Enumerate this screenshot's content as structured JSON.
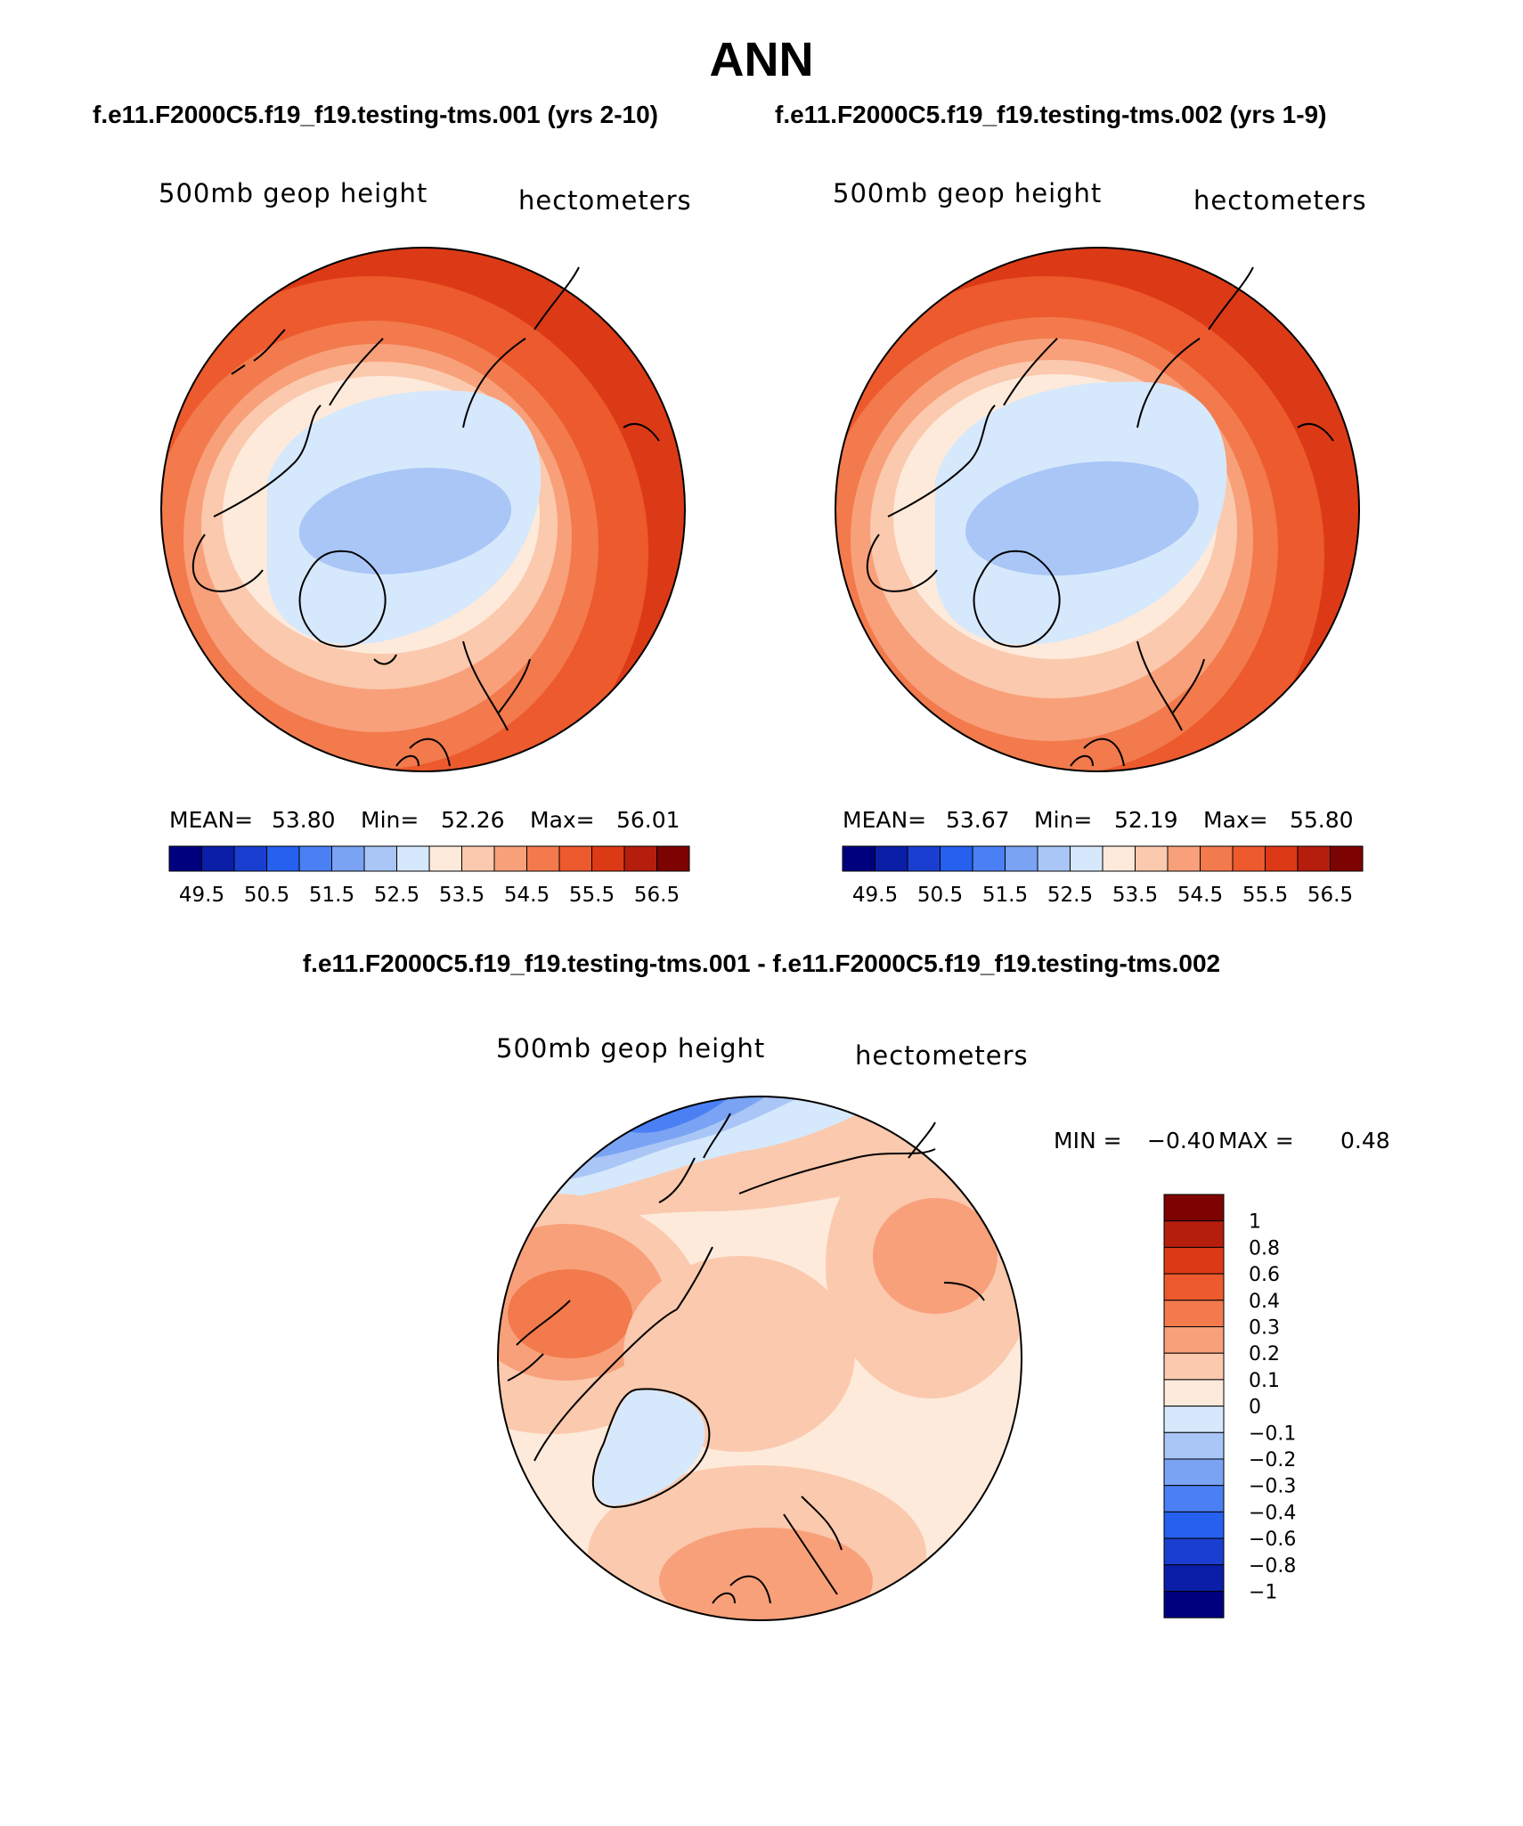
{
  "figure": {
    "season": "ANN",
    "colors": {
      "blues": [
        "#00007f",
        "#0a1ea8",
        "#1a3fd0",
        "#2660ee",
        "#4a80f4",
        "#7aa3f4",
        "#a9c6f6",
        "#d6e8fb"
      ],
      "reds": [
        "#fdeadb",
        "#fbc9ad",
        "#f8a07a",
        "#f27a4c",
        "#ec5a2d",
        "#dc3a16",
        "#b51e0d",
        "#7d0202"
      ]
    }
  },
  "chart_data": [
    {
      "type": "heatmap",
      "name": "case-1",
      "title": "f.e11.F2000C5.f19_f19.testing-tms.001 (yrs 2-10)",
      "left_label": "500mb geop height",
      "right_label": "hectometers",
      "stats": {
        "mean_label": "MEAN=",
        "mean": "53.80",
        "min_label": "Min=",
        "min": "52.26",
        "max_label": "Max=",
        "max": "56.01"
      },
      "levels": [
        49.5,
        50.0,
        50.5,
        51.0,
        51.5,
        52.0,
        52.5,
        53.0,
        53.5,
        54.0,
        54.5,
        55.0,
        55.5,
        56.0,
        56.5
      ],
      "colorbar_labels": [
        "49.5",
        "50.5",
        "51.5",
        "52.5",
        "53.5",
        "54.5",
        "55.5",
        "56.5"
      ]
    },
    {
      "type": "heatmap",
      "name": "case-2",
      "title": "f.e11.F2000C5.f19_f19.testing-tms.002 (yrs 1-9)",
      "left_label": "500mb geop height",
      "right_label": "hectometers",
      "stats": {
        "mean_label": "MEAN=",
        "mean": "53.67",
        "min_label": "Min=",
        "min": "52.19",
        "max_label": "Max=",
        "max": "55.80"
      },
      "levels": [
        49.5,
        50.0,
        50.5,
        51.0,
        51.5,
        52.0,
        52.5,
        53.0,
        53.5,
        54.0,
        54.5,
        55.0,
        55.5,
        56.0,
        56.5
      ],
      "colorbar_labels": [
        "49.5",
        "50.5",
        "51.5",
        "52.5",
        "53.5",
        "54.5",
        "55.5",
        "56.5"
      ]
    },
    {
      "type": "heatmap",
      "name": "difference",
      "title": "f.e11.F2000C5.f19_f19.testing-tms.001 - f.e11.F2000C5.f19_f19.testing-tms.002",
      "left_label": "500mb geop height",
      "right_label": "hectometers",
      "stats": {
        "min_label": "MIN =",
        "min": "−0.40",
        "max_label": "MAX =",
        "max": "0.48"
      },
      "levels": [
        -1,
        -0.8,
        -0.6,
        -0.4,
        -0.3,
        -0.2,
        -0.1,
        0,
        0.1,
        0.2,
        0.3,
        0.4,
        0.6,
        0.8,
        1
      ],
      "colorbar_labels": [
        "1",
        "0.8",
        "0.6",
        "0.4",
        "0.3",
        "0.2",
        "0.1",
        "0",
        "−0.1",
        "−0.2",
        "−0.3",
        "−0.4",
        "−0.6",
        "−0.8",
        "−1"
      ]
    }
  ]
}
